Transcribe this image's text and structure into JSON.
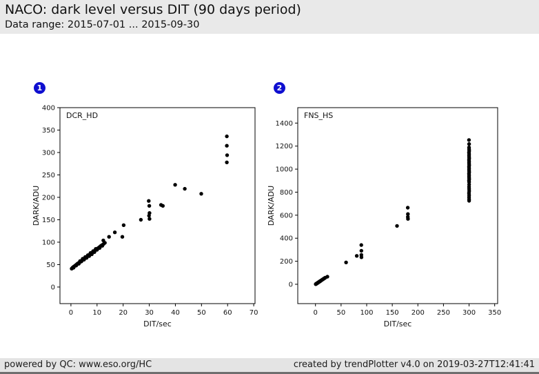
{
  "header": {
    "title": "NACO: dark level versus DIT (90 days period)",
    "subtitle": "Data range: 2015-07-01 ... 2015-09-30"
  },
  "footer": {
    "left": "powered by QC: www.eso.org/HC",
    "right": "created by trendPlotter v4.0 on 2019-03-27T12:41:41"
  },
  "colors": {
    "header_bg": "#e9e9e9",
    "footer_bg": "#e4e4e4",
    "badge_blue": "#0f0fd0",
    "marker": "#000000"
  },
  "chart_data": [
    {
      "type": "scatter",
      "badge": "1",
      "label": "DCR_HD",
      "xlabel": "DIT/sec",
      "ylabel": "DARK/ADU",
      "xticks": [
        0,
        10,
        20,
        30,
        40,
        50,
        60,
        70
      ],
      "yticks": [
        0,
        50,
        100,
        150,
        200,
        250,
        300,
        350,
        400
      ],
      "xlim": [
        -4.2,
        70.5
      ],
      "ylim": [
        -37,
        400
      ],
      "grid": false,
      "legend": "none",
      "points": [
        [
          0.3,
          41
        ],
        [
          0.6,
          43
        ],
        [
          0.9,
          44.5
        ],
        [
          1.2,
          46
        ],
        [
          1.5,
          47
        ],
        [
          1.8,
          48.5
        ],
        [
          2.1,
          50
        ],
        [
          2.4,
          51
        ],
        [
          2.7,
          52.5
        ],
        [
          3.0,
          54
        ],
        [
          3.3,
          55
        ],
        [
          3.6,
          56.5
        ],
        [
          3.9,
          58
        ],
        [
          4.2,
          59
        ],
        [
          4.5,
          60.5
        ],
        [
          4.8,
          62
        ],
        [
          5.1,
          63
        ],
        [
          5.4,
          64.5
        ],
        [
          5.7,
          66
        ],
        [
          6.0,
          67
        ],
        [
          6.3,
          68.5
        ],
        [
          6.6,
          70
        ],
        [
          7.0,
          71.5
        ],
        [
          7.4,
          73.5
        ],
        [
          7.8,
          75
        ],
        [
          8.2,
          77
        ],
        [
          8.6,
          79
        ],
        [
          9.0,
          80.5
        ],
        [
          9.4,
          82.5
        ],
        [
          9.8,
          84
        ],
        [
          10.2,
          86
        ],
        [
          10.6,
          87.5
        ],
        [
          11.0,
          89.5
        ],
        [
          11.5,
          92
        ],
        [
          12.0,
          94
        ],
        [
          12.5,
          96
        ],
        [
          13.0,
          98.5
        ],
        [
          1.0,
          43
        ],
        [
          2.0,
          48
        ],
        [
          3.0,
          52
        ],
        [
          4.0,
          57
        ],
        [
          5.0,
          61
        ],
        [
          6.0,
          65
        ],
        [
          7.0,
          69
        ],
        [
          8.0,
          73
        ],
        [
          9.0,
          78
        ],
        [
          10.0,
          83
        ],
        [
          11.0,
          87
        ],
        [
          12.0,
          92
        ],
        [
          2.5,
          52
        ],
        [
          3.5,
          58
        ],
        [
          4.5,
          63
        ],
        [
          5.5,
          67
        ],
        [
          6.5,
          71
        ],
        [
          7.5,
          76
        ],
        [
          8.5,
          80
        ],
        [
          9.5,
          85
        ],
        [
          12.4,
          104
        ],
        [
          14.6,
          112
        ],
        [
          16.8,
          122
        ],
        [
          19.7,
          112
        ],
        [
          20.2,
          138
        ],
        [
          26.8,
          150
        ],
        [
          29.8,
          192
        ],
        [
          30.0,
          181
        ],
        [
          30.1,
          165
        ],
        [
          29.9,
          159
        ],
        [
          30.1,
          152
        ],
        [
          34.5,
          183
        ],
        [
          35.2,
          181
        ],
        [
          39.9,
          228
        ],
        [
          43.6,
          219
        ],
        [
          49.9,
          208
        ],
        [
          59.7,
          336
        ],
        [
          59.7,
          315
        ],
        [
          59.8,
          294
        ],
        [
          59.7,
          278
        ]
      ]
    },
    {
      "type": "scatter",
      "badge": "2",
      "label": "FNS_HS",
      "xlabel": "DIT/sec",
      "ylabel": "DARK/ADU",
      "xticks": [
        0,
        50,
        100,
        150,
        200,
        250,
        300,
        350
      ],
      "yticks": [
        0,
        200,
        400,
        600,
        800,
        1000,
        1200,
        1400
      ],
      "xlim": [
        -34.6,
        355.8
      ],
      "ylim": [
        -168,
        1534
      ],
      "grid": false,
      "legend": "none",
      "points": [
        [
          0.5,
          1
        ],
        [
          1,
          3
        ],
        [
          1.5,
          4
        ],
        [
          2,
          6
        ],
        [
          2.5,
          7
        ],
        [
          3,
          9
        ],
        [
          3.5,
          10
        ],
        [
          4,
          12
        ],
        [
          4.5,
          13
        ],
        [
          5,
          15
        ],
        [
          5.5,
          16
        ],
        [
          6,
          18
        ],
        [
          6.5,
          19
        ],
        [
          7,
          21
        ],
        [
          7.5,
          22
        ],
        [
          8,
          24
        ],
        [
          8.5,
          25
        ],
        [
          9,
          27
        ],
        [
          9.5,
          28
        ],
        [
          10,
          30
        ],
        [
          11,
          33
        ],
        [
          12,
          36
        ],
        [
          13,
          39
        ],
        [
          14,
          42
        ],
        [
          15,
          45
        ],
        [
          16,
          48
        ],
        [
          17,
          51
        ],
        [
          18,
          54
        ],
        [
          19,
          57
        ],
        [
          23.3,
          66
        ],
        [
          59.8,
          190
        ],
        [
          80.7,
          247
        ],
        [
          89.5,
          341
        ],
        [
          89.7,
          291
        ],
        [
          89.6,
          255
        ],
        [
          89.8,
          235
        ],
        [
          159.2,
          507
        ],
        [
          180.3,
          665
        ],
        [
          180.5,
          610
        ],
        [
          180.4,
          585
        ],
        [
          180.6,
          568
        ],
        [
          299.8,
          1253
        ],
        [
          300.1,
          1218
        ],
        [
          299.9,
          1188
        ],
        [
          300.0,
          1172
        ],
        [
          300.2,
          1158
        ],
        [
          299.8,
          1144
        ],
        [
          300.1,
          1130
        ],
        [
          299.9,
          1117
        ],
        [
          300.0,
          1104
        ],
        [
          300.2,
          1092
        ],
        [
          299.8,
          1080
        ],
        [
          300.1,
          1068
        ],
        [
          299.9,
          1056
        ],
        [
          300.0,
          1044
        ],
        [
          300.2,
          1032
        ],
        [
          299.8,
          1020
        ],
        [
          300.1,
          1008
        ],
        [
          299.9,
          996
        ],
        [
          300.0,
          984
        ],
        [
          300.2,
          972
        ],
        [
          299.8,
          960
        ],
        [
          300.1,
          948
        ],
        [
          299.9,
          936
        ],
        [
          300.0,
          924
        ],
        [
          300.2,
          912
        ],
        [
          299.8,
          900
        ],
        [
          300.0,
          888
        ],
        [
          300.1,
          866
        ],
        [
          299.9,
          846
        ],
        [
          300.0,
          828
        ],
        [
          300.2,
          810
        ],
        [
          299.8,
          792
        ],
        [
          300.1,
          774
        ],
        [
          299.9,
          756
        ],
        [
          300.0,
          738
        ],
        [
          300.0,
          725
        ]
      ]
    }
  ]
}
